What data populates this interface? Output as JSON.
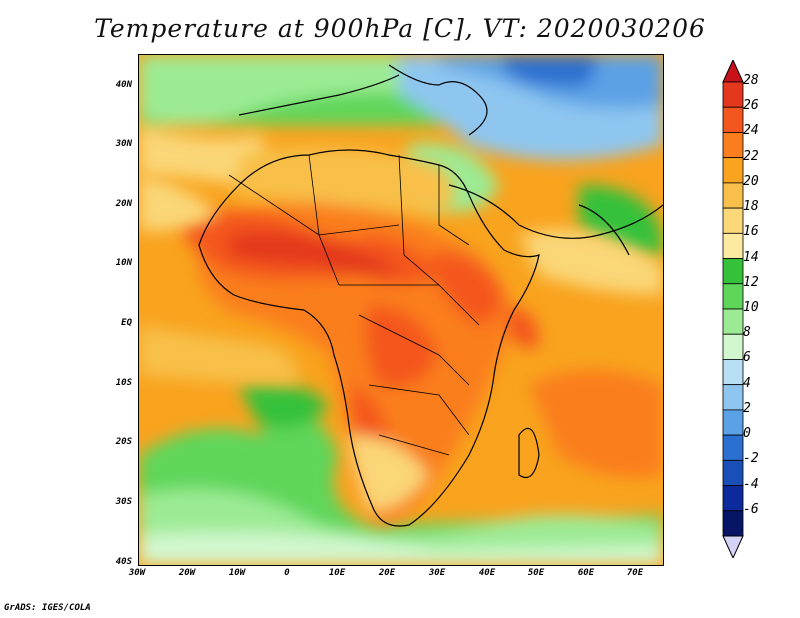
{
  "title": "Temperature at 900hPa [C], VT: 2020030206",
  "credit": "GrADS: IGES/COLA",
  "lat_labels": [
    "40N",
    "30N",
    "20N",
    "10N",
    "EQ",
    "10S",
    "20S",
    "30S",
    "40S"
  ],
  "lon_labels": [
    "30W",
    "20W",
    "10W",
    "0",
    "10E",
    "20E",
    "30E",
    "40E",
    "50E",
    "60E",
    "70E"
  ],
  "colorbar": {
    "labels": [
      "28",
      "26",
      "24",
      "22",
      "20",
      "18",
      "16",
      "14",
      "12",
      "10",
      "8",
      "6",
      "4",
      "2",
      "0",
      "-2",
      "-4",
      "-6"
    ],
    "colors": [
      "#e3371e",
      "#f4561f",
      "#fa7e1e",
      "#f9a31e",
      "#f8c04a",
      "#fad778",
      "#fbeaa0",
      "#35c13a",
      "#5ed65a",
      "#9ceb94",
      "#d2f7cf",
      "#b8dff4",
      "#8ec6f0",
      "#5ba1e6",
      "#2b6fd0",
      "#1a4fb8",
      "#0c2a9c",
      "#081466"
    ],
    "top_arrow_color": "#c8121a",
    "bottom_arrow_color": "#d4d2f5"
  }
}
